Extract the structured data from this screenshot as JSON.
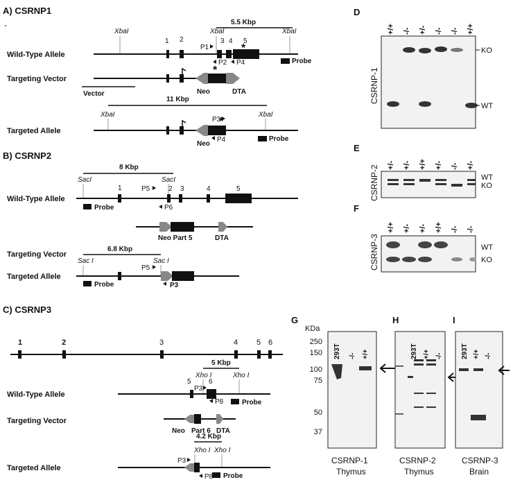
{
  "panels": {
    "A": {
      "title": "A) CSRNP1",
      "dash": "-",
      "wt_label": "Wild-Type Allele",
      "tv_label": "Targeting Vector",
      "ta_label": "Targeted Allele",
      "vector": "Vector",
      "xbai": "XbaI",
      "wt_size": "5.5 Kbp",
      "ta_size": "11 Kbp",
      "exons": [
        "1",
        "2",
        "3",
        "4",
        "5"
      ],
      "primers": [
        "P1",
        "P2",
        "P4",
        "P3"
      ],
      "neo": "Neo",
      "dta": "DTA",
      "probe": "Probe",
      "star": "*"
    },
    "B": {
      "title": "B) CSRNP2",
      "wt_label": "Wild-Type Allele",
      "tv_label": "Targeting Vector",
      "ta_label": "Targeted Allele",
      "saci": "SacI",
      "saci_sp": "Sac I",
      "wt_size": "8 Kbp",
      "ta_size": "6.8 Kbp",
      "exons": [
        "1",
        "2",
        "3",
        "4",
        "5"
      ],
      "primers": [
        "P5",
        "P6",
        "P3"
      ],
      "neo_part": "Neo Part 5",
      "dta": "DTA",
      "probe": "Probe"
    },
    "C": {
      "title": "C) CSRNP3",
      "wt_label": "Wild-Type Allele",
      "tv_label": "Targeting Vector",
      "ta_label": "Targeted Allele",
      "xhoi": "Xho I",
      "wt_size": "5 Kbp",
      "ta_size": "4.2 Kbp",
      "exons": [
        "1",
        "2",
        "3",
        "4",
        "5",
        "6"
      ],
      "primers": [
        "P3",
        "P8"
      ],
      "neo": "Neo",
      "part6": "Part 6",
      "dta": "DTA",
      "probe": "Probe"
    },
    "D": {
      "letter": "D",
      "side": "CSRNP-1",
      "ko": "KO",
      "wt": "WT",
      "genotypes": [
        "+/+",
        "-/-",
        "+/-",
        "-/-",
        "-/-",
        "+/+"
      ]
    },
    "E": {
      "letter": "E",
      "side": "CSRNP-2",
      "ko": "KO",
      "wt": "WT",
      "genotypes": [
        "+/-",
        "+/-",
        "+/+",
        "+/-",
        "-/-",
        "+/-"
      ]
    },
    "F": {
      "letter": "F",
      "side": "CSRNP-3",
      "ko": "KO",
      "wt": "WT",
      "genotypes": [
        "+/+",
        "+/-",
        "+/-",
        "+/+",
        "-/-",
        "-/-"
      ]
    },
    "G": {
      "letter": "G",
      "kda": "KDa",
      "lanes": [
        "293T",
        "-/-",
        "+/+"
      ],
      "caption": [
        "CSRNP-1",
        "Thymus"
      ]
    },
    "H": {
      "letter": "H",
      "lanes": [
        "293T",
        "+/+",
        "-/-"
      ],
      "caption": [
        "CSRNP-2",
        "Thymus"
      ]
    },
    "I": {
      "letter": "I",
      "lanes": [
        "293T",
        "+/+",
        "-/-"
      ],
      "caption": [
        "CSRNP-3",
        "Brain"
      ]
    },
    "mw_markers": [
      "250",
      "150",
      "100",
      "75",
      "50",
      "37"
    ]
  }
}
